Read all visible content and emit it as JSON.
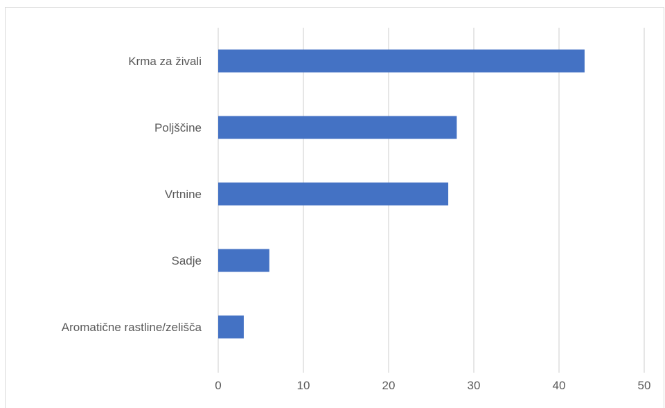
{
  "chart_data": {
    "type": "bar",
    "orientation": "horizontal",
    "categories": [
      "Krma za živali",
      "Poljščine",
      "Vrtnine",
      "Sadje",
      "Aromatične rastline/zelišča"
    ],
    "values": [
      43,
      28,
      27,
      6,
      3
    ],
    "xlim": [
      0,
      50
    ],
    "xticks": [
      "0",
      "10",
      "20",
      "30",
      "40",
      "50"
    ],
    "grid": "vertical",
    "bar_color": "#4472c4",
    "title": "",
    "xlabel": "",
    "ylabel": ""
  }
}
